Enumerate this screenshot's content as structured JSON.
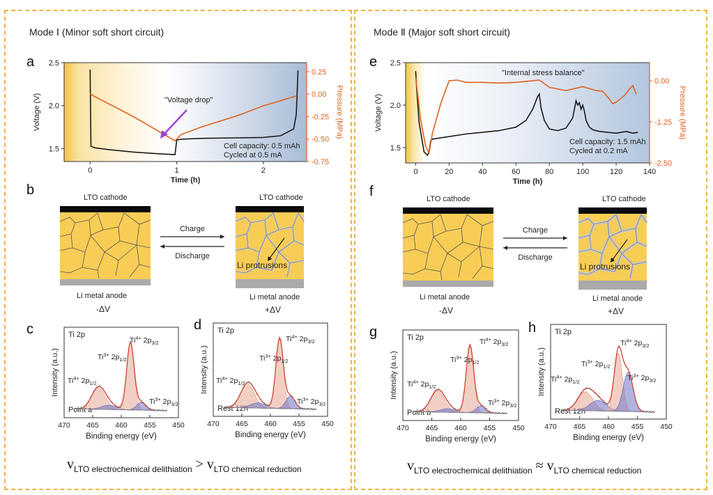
{
  "modes": [
    {
      "title": "Mode Ⅰ (Minor soft short circuit)"
    },
    {
      "title": "Mode Ⅱ (Major soft short circuit)"
    }
  ],
  "panel_labels": {
    "a": "a",
    "b": "b",
    "c": "c",
    "d": "d",
    "e": "e",
    "f": "f",
    "g": "g",
    "h": "h"
  },
  "colors": {
    "voltage": "#1a1a1a",
    "pressure": "#e0611e",
    "arrow": "#9b45c9",
    "grain": "#f7cd56",
    "cathode": "#0a0a0a",
    "anode": "#aaaaaa",
    "peak_ti4": "#e8a893",
    "peak_ti3": "#6f74c6",
    "envelope": "#e03b2a",
    "raw": "#2e9aa0"
  },
  "chart_data": [
    {
      "id": "a",
      "type": "line",
      "xlabel": "Time (h)",
      "ylabel": "Voltage (V)",
      "y2label": "Pressure (MPa)",
      "xlim": [
        -0.3,
        2.5
      ],
      "xticks": [
        0,
        1,
        2
      ],
      "ylim": [
        1.35,
        2.5
      ],
      "yticks": [
        1.5,
        2.0,
        2.5
      ],
      "y2lim": [
        -0.75,
        0.35
      ],
      "y2ticks": [
        -0.75,
        -0.5,
        -0.25,
        0.0,
        0.25
      ],
      "y2ticklabels": [
        "-0.75",
        "-0.50",
        "-0.25",
        "0.00",
        "0.25"
      ],
      "annotations": [
        "\"Voltage drop\"",
        "Cell capacity: 0.5 mAh",
        "Cycled at 0.5 mA"
      ],
      "series": [
        {
          "name": "Voltage",
          "axis": "left",
          "x": [
            0,
            0.01,
            0.05,
            0.2,
            0.5,
            0.8,
            0.98,
            1.0,
            1.05,
            1.3,
            1.7,
            2.0,
            2.2,
            2.35,
            2.38,
            2.4
          ],
          "y": [
            2.42,
            1.53,
            1.51,
            1.49,
            1.46,
            1.44,
            1.43,
            1.6,
            1.61,
            1.62,
            1.625,
            1.63,
            1.65,
            1.73,
            1.9,
            2.41
          ]
        },
        {
          "name": "Pressure",
          "axis": "right",
          "x": [
            0,
            0.5,
            0.98,
            1.05,
            1.3,
            1.7,
            2.0,
            2.38
          ],
          "y": [
            0.0,
            -0.25,
            -0.52,
            -0.45,
            -0.36,
            -0.24,
            -0.13,
            -0.02
          ]
        }
      ]
    },
    {
      "id": "e",
      "type": "line",
      "xlabel": "Time (h)",
      "ylabel": "Voltage (V)",
      "y2label": "Pressure (MPa)",
      "xlim": [
        -6,
        140
      ],
      "xticks": [
        0,
        20,
        40,
        60,
        80,
        100,
        120,
        140
      ],
      "ylim": [
        1.32,
        2.5
      ],
      "yticks": [
        1.5,
        2.0,
        2.5
      ],
      "y2lim": [
        -2.5,
        0.55
      ],
      "y2ticks": [
        -2.5,
        -1.25,
        0.0
      ],
      "y2ticklabels": [
        "-2.50",
        "-1.25",
        "0.00"
      ],
      "annotations": [
        "\"Internal stress balance\"",
        "Cell capacity: 1.5 mAh",
        "Cycled at 0.2 mA"
      ],
      "series": [
        {
          "name": "Voltage",
          "axis": "left",
          "x": [
            0,
            0.5,
            2,
            5,
            7,
            8,
            9,
            10,
            20,
            30,
            40,
            50,
            60,
            66,
            70,
            73,
            74,
            75,
            77,
            80,
            85,
            90,
            94,
            96,
            97,
            98,
            99,
            100,
            101,
            102,
            104,
            106,
            110,
            120,
            126,
            130,
            133
          ],
          "y": [
            2.4,
            2.22,
            1.8,
            1.45,
            1.41,
            1.45,
            1.58,
            1.6,
            1.63,
            1.66,
            1.68,
            1.7,
            1.74,
            1.82,
            1.95,
            2.1,
            2.13,
            1.97,
            1.82,
            1.72,
            1.7,
            1.73,
            1.85,
            2.05,
            2.0,
            2.03,
            1.95,
            2.0,
            1.93,
            1.82,
            1.74,
            1.71,
            1.69,
            1.67,
            1.69,
            1.67,
            1.68
          ]
        },
        {
          "name": "Pressure",
          "axis": "right",
          "x": [
            0,
            3,
            6,
            8,
            10,
            15,
            20,
            25,
            30,
            40,
            50,
            60,
            70,
            74,
            80,
            90,
            100,
            108,
            112,
            115,
            118,
            120,
            125,
            128,
            130,
            132
          ],
          "y": [
            0.1,
            -1.2,
            -2.0,
            -2.2,
            -1.6,
            -0.7,
            0.0,
            0.02,
            -0.05,
            -0.05,
            -0.07,
            -0.05,
            0.0,
            0.02,
            -0.2,
            -0.3,
            -0.18,
            -0.3,
            -0.32,
            -0.5,
            -0.7,
            -0.65,
            -0.45,
            -0.25,
            -0.15,
            -0.4
          ]
        }
      ]
    },
    {
      "id": "c",
      "type": "line",
      "xlabel": "Binding energy (eV)",
      "ylabel": "Intensity (a.u.)",
      "xlim": [
        470,
        450
      ],
      "xticks": [
        470,
        465,
        460,
        455,
        450
      ],
      "text": [
        "Ti 2p",
        "Point a"
      ],
      "peak_labels": [
        {
          "ion": "Ti",
          "sup": "4+",
          "orb": " 2p",
          "sub": "3/2"
        },
        {
          "ion": "Ti",
          "sup": "3+",
          "orb": " 2p",
          "sub": "1/2"
        },
        {
          "ion": "Ti",
          "sup": "4+",
          "orb": " 2p",
          "sub": "1/2"
        },
        {
          "ion": "Ti",
          "sup": "3+",
          "orb": " 2p",
          "sub": "3/2"
        }
      ],
      "components": [
        {
          "name": "Ti4+ 2p1/2",
          "center": 464.0,
          "height": 0.3,
          "width": 1.2
        },
        {
          "name": "Ti3+ 2p1/2",
          "center": 462.2,
          "height": 0.06,
          "width": 1.3
        },
        {
          "name": "Ti4+ 2p3/2",
          "center": 458.4,
          "height": 0.95,
          "width": 0.65
        },
        {
          "name": "Ti3+ 2p3/2",
          "center": 456.5,
          "height": 0.11,
          "width": 0.8
        }
      ]
    },
    {
      "id": "d",
      "type": "line",
      "xlabel": "Binding energy (eV)",
      "ylabel": "Intensity (a.u.)",
      "xlim": [
        470,
        450
      ],
      "xticks": [
        470,
        465,
        460,
        455,
        450
      ],
      "text": [
        "Ti 2p",
        "Rest 12h"
      ],
      "peak_labels": [
        {
          "ion": "Ti",
          "sup": "4+",
          "orb": " 2p",
          "sub": "3/2"
        },
        {
          "ion": "Ti",
          "sup": "3+",
          "orb": " 2p",
          "sub": "1/2"
        },
        {
          "ion": "Ti",
          "sup": "4+",
          "orb": " 2p",
          "sub": "1/2"
        },
        {
          "ion": "Ti",
          "sup": "3+",
          "orb": " 2p",
          "sub": "3/2"
        }
      ],
      "components": [
        {
          "name": "Ti4+ 2p1/2",
          "center": 464.0,
          "height": 0.32,
          "width": 1.2
        },
        {
          "name": "Ti3+ 2p1/2",
          "center": 462.2,
          "height": 0.07,
          "width": 1.3
        },
        {
          "name": "Ti4+ 2p3/2",
          "center": 458.4,
          "height": 0.95,
          "width": 0.65
        },
        {
          "name": "Ti3+ 2p3/2",
          "center": 456.5,
          "height": 0.17,
          "width": 0.8
        }
      ]
    },
    {
      "id": "g",
      "type": "line",
      "xlabel": "Binding energy (eV)",
      "ylabel": "Intensity (a.u.)",
      "xlim": [
        470,
        450
      ],
      "xticks": [
        470,
        465,
        460,
        455,
        450
      ],
      "text": [
        "Ti 2p",
        "Point b"
      ],
      "peak_labels": [
        {
          "ion": "Ti",
          "sup": "4+",
          "orb": " 2p",
          "sub": "3/2"
        },
        {
          "ion": "Ti",
          "sup": "3+",
          "orb": " 2p",
          "sub": "1/2"
        },
        {
          "ion": "Ti",
          "sup": "4+",
          "orb": " 2p",
          "sub": "1/2"
        },
        {
          "ion": "Ti",
          "sup": "3+",
          "orb": " 2p",
          "sub": "3/2"
        }
      ],
      "components": [
        {
          "name": "Ti4+ 2p1/2",
          "center": 464.0,
          "height": 0.3,
          "width": 1.2
        },
        {
          "name": "Ti3+ 2p1/2",
          "center": 462.2,
          "height": 0.05,
          "width": 1.3
        },
        {
          "name": "Ti4+ 2p3/2",
          "center": 458.4,
          "height": 0.95,
          "width": 0.65
        },
        {
          "name": "Ti3+ 2p3/2",
          "center": 456.5,
          "height": 0.1,
          "width": 0.8
        }
      ]
    },
    {
      "id": "h",
      "type": "line",
      "xlabel": "Binding energy (eV)",
      "ylabel": "Intensity (a.u.)",
      "xlim": [
        470,
        450
      ],
      "xticks": [
        470,
        465,
        460,
        455,
        450
      ],
      "text": [
        "Ti 2p",
        "Rest 12h"
      ],
      "peak_labels": [
        {
          "ion": "Ti",
          "sup": "4+",
          "orb": " 2p",
          "sub": "3/2"
        },
        {
          "ion": "Ti",
          "sup": "3+",
          "orb": " 2p",
          "sub": "1/2"
        },
        {
          "ion": "Ti",
          "sup": "4+",
          "orb": " 2p",
          "sub": "1/2"
        },
        {
          "ion": "Ti",
          "sup": "3+",
          "orb": " 2p",
          "sub": "3/2"
        }
      ],
      "components": [
        {
          "name": "Ti4+ 2p1/2",
          "center": 464.0,
          "height": 0.25,
          "width": 1.3
        },
        {
          "name": "Ti3+ 2p1/2",
          "center": 461.8,
          "height": 0.14,
          "width": 1.4
        },
        {
          "name": "Ti4+ 2p3/2",
          "center": 458.3,
          "height": 0.78,
          "width": 0.7
        },
        {
          "name": "Ti3+ 2p3/2",
          "center": 456.6,
          "height": 0.52,
          "width": 0.85
        }
      ]
    }
  ],
  "schematics": [
    {
      "id": "b",
      "cathode": "LTO cathode",
      "anode": "Li metal anode",
      "delta_left": "-ΔV",
      "delta_right": "+ΔV",
      "charge": "Charge",
      "discharge": "Discharge",
      "protrusion": "Li protrusions"
    },
    {
      "id": "f",
      "cathode": "LTO cathode",
      "anode": "Li metal anode",
      "delta_left": "-ΔV",
      "delta_right": "+ΔV",
      "charge": "Charge",
      "discharge": "Discharge",
      "protrusion": "Li protrusions"
    }
  ],
  "equations": [
    {
      "v": "v",
      "sub1": "LTO electrochemical delithiation",
      "op": " > ",
      "sub2": "LTO chemical reduction"
    },
    {
      "v": "v",
      "sub1": "LTO electrochemical delithiation",
      "op": " ≈ ",
      "sub2": "LTO chemical reduction"
    }
  ]
}
